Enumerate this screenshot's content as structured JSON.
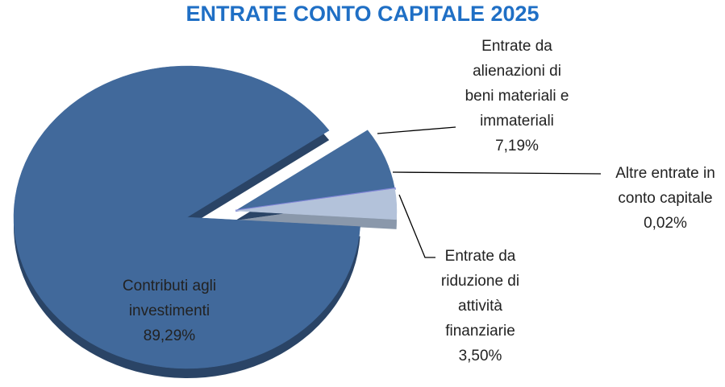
{
  "chart_data": {
    "type": "pie",
    "title": "ENTRATE CONTO CAPITALE 2025",
    "categories": [
      "Contributi agli investimenti",
      "Entrate da alienazioni di beni materiali e immateriali",
      "Altre entrate in conto capitale",
      "Entrate da riduzione di attività finanziarie"
    ],
    "values": [
      89.29,
      7.19,
      0.02,
      3.5
    ],
    "value_labels": [
      "89,29%",
      "7,19%",
      "0,02%",
      "3,50%"
    ],
    "colors": [
      "#41699b",
      "#446c9d",
      "#7f84d6",
      "#b3c2da"
    ]
  }
}
